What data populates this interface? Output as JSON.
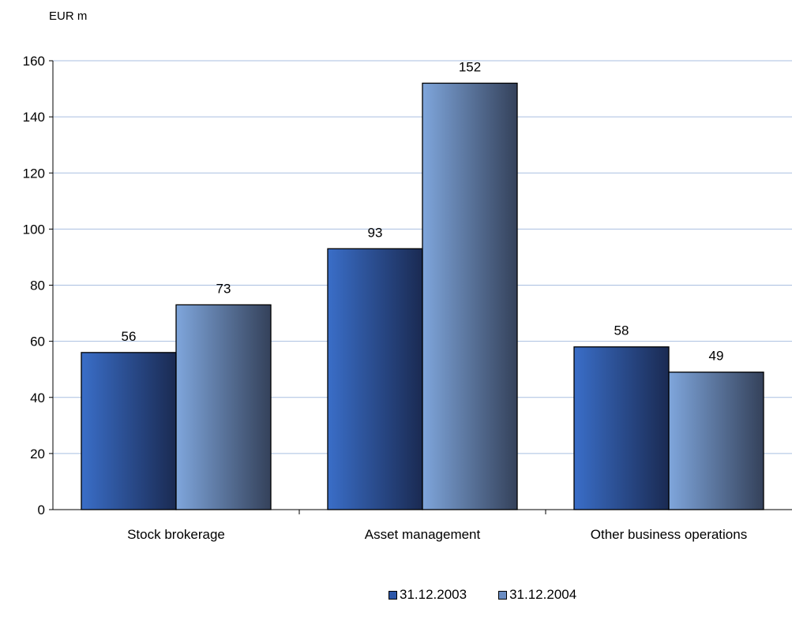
{
  "chart_data": {
    "type": "bar",
    "title": "",
    "unit_label": "EUR m",
    "xlabel": "",
    "ylabel": "EUR m",
    "categories": [
      "Stock brokerage",
      "Asset management",
      "Other business operations"
    ],
    "series": [
      {
        "name": "31.12.2003",
        "values": [
          56,
          93,
          58
        ],
        "color_light": "#3a6ec8",
        "color_dark": "#1a2a52"
      },
      {
        "name": "31.12.2004",
        "values": [
          73,
          152,
          49
        ],
        "color_light": "#7fa6dc",
        "color_dark": "#34415a"
      }
    ],
    "data_labels": [
      [
        "56",
        "93",
        "58"
      ],
      [
        "73",
        "152",
        "49"
      ]
    ],
    "ylim": [
      0,
      160
    ],
    "yticks": [
      0,
      20,
      40,
      60,
      80,
      100,
      120,
      140,
      160
    ],
    "grid": true,
    "legend_position": "bottom"
  }
}
